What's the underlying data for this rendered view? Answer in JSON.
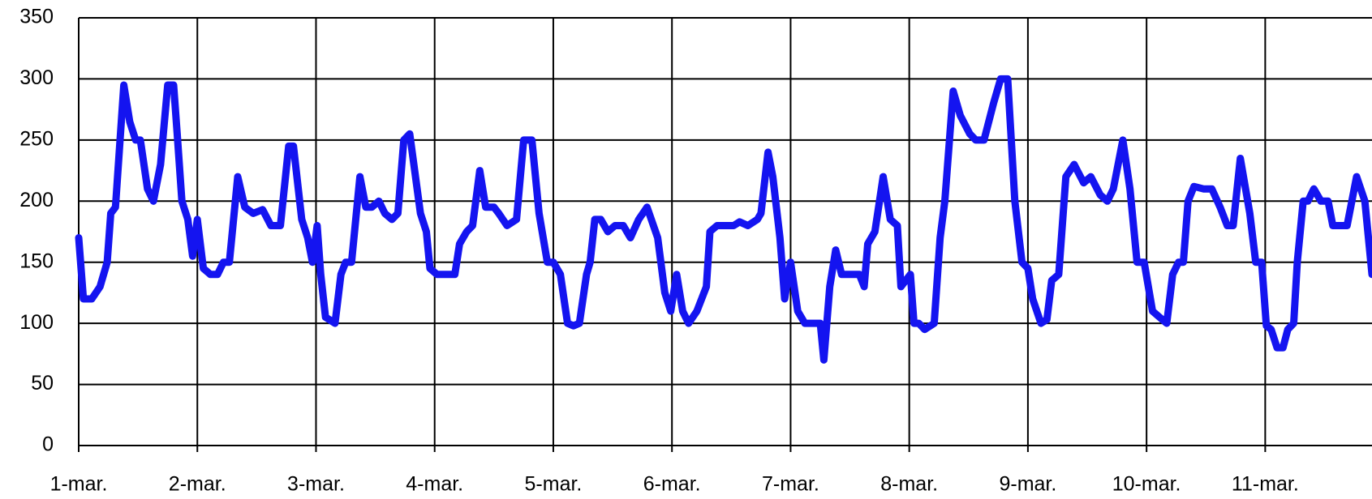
{
  "chart_data": {
    "type": "line",
    "x": [
      0,
      0.04,
      0.11,
      0.18,
      0.24,
      0.27,
      0.31,
      0.38,
      0.43,
      0.48,
      0.52,
      0.58,
      0.63,
      0.69,
      0.75,
      0.8,
      0.83,
      0.87,
      0.92,
      0.96,
      1.0,
      1.05,
      1.11,
      1.17,
      1.22,
      1.27,
      1.34,
      1.4,
      1.47,
      1.55,
      1.62,
      1.7,
      1.77,
      1.81,
      1.88,
      1.93,
      1.97,
      2.01,
      2.04,
      2.08,
      2.16,
      2.21,
      2.25,
      2.3,
      2.37,
      2.42,
      2.47,
      2.53,
      2.58,
      2.64,
      2.69,
      2.74,
      2.79,
      2.88,
      2.93,
      2.96,
      3.02,
      3.1,
      3.17,
      3.21,
      3.27,
      3.32,
      3.38,
      3.43,
      3.5,
      3.54,
      3.61,
      3.69,
      3.75,
      3.82,
      3.88,
      3.95,
      4.0,
      4.06,
      4.12,
      4.17,
      4.22,
      4.28,
      4.31,
      4.35,
      4.4,
      4.46,
      4.52,
      4.59,
      4.65,
      4.72,
      4.79,
      4.88,
      4.94,
      4.99,
      5.04,
      5.09,
      5.14,
      5.21,
      5.29,
      5.32,
      5.38,
      5.46,
      5.52,
      5.57,
      5.64,
      5.72,
      5.75,
      5.81,
      5.85,
      5.91,
      5.95,
      6.0,
      6.06,
      6.12,
      6.19,
      6.25,
      6.28,
      6.33,
      6.38,
      6.43,
      6.5,
      6.58,
      6.62,
      6.65,
      6.71,
      6.78,
      6.84,
      6.9,
      6.93,
      7.01,
      7.04,
      7.08,
      7.13,
      7.21,
      7.26,
      7.3,
      7.37,
      7.43,
      7.51,
      7.56,
      7.63,
      7.71,
      7.77,
      7.83,
      7.89,
      7.95,
      8.0,
      8.04,
      8.11,
      8.16,
      8.2,
      8.26,
      8.32,
      8.39,
      8.47,
      8.53,
      8.61,
      8.67,
      8.72,
      8.8,
      8.86,
      8.92,
      8.98,
      9.05,
      9.11,
      9.17,
      9.22,
      9.27,
      9.31,
      9.35,
      9.4,
      9.48,
      9.55,
      9.62,
      9.68,
      9.73,
      9.79,
      9.87,
      9.92,
      9.97,
      10.01,
      10.05,
      10.1,
      10.15,
      10.19,
      10.24,
      10.27,
      10.32,
      10.36,
      10.41,
      10.47,
      10.53,
      10.57,
      10.63,
      10.69,
      10.77,
      10.84,
      10.9
    ],
    "series": [
      {
        "color": "#1414f0",
        "values": [
          170,
          120,
          120,
          130,
          150,
          190,
          195,
          295,
          265,
          250,
          250,
          210,
          200,
          230,
          295,
          295,
          255,
          200,
          185,
          155,
          185,
          145,
          140,
          140,
          150,
          150,
          220,
          195,
          190,
          193,
          180,
          180,
          245,
          245,
          185,
          170,
          150,
          180,
          140,
          105,
          100,
          140,
          150,
          150,
          220,
          195,
          195,
          200,
          190,
          185,
          190,
          250,
          255,
          190,
          175,
          145,
          140,
          140,
          140,
          165,
          175,
          180,
          225,
          195,
          195,
          190,
          180,
          185,
          250,
          250,
          190,
          150,
          150,
          140,
          100,
          98,
          100,
          140,
          150,
          185,
          185,
          175,
          180,
          180,
          170,
          185,
          195,
          170,
          125,
          110,
          140,
          110,
          100,
          110,
          130,
          175,
          180,
          180,
          180,
          183,
          180,
          185,
          190,
          240,
          220,
          170,
          120,
          150,
          110,
          100,
          100,
          100,
          70,
          130,
          160,
          140,
          140,
          140,
          130,
          165,
          175,
          220,
          185,
          180,
          130,
          140,
          100,
          100,
          95,
          100,
          170,
          200,
          290,
          270,
          255,
          250,
          250,
          280,
          300,
          300,
          200,
          150,
          145,
          120,
          100,
          103,
          135,
          140,
          220,
          230,
          215,
          220,
          205,
          200,
          210,
          250,
          210,
          150,
          150,
          110,
          105,
          100,
          140,
          150,
          150,
          200,
          212,
          210,
          210,
          195,
          180,
          180,
          235,
          190,
          150,
          150,
          98,
          95,
          80,
          80,
          95,
          100,
          150,
          200,
          200,
          210,
          200,
          200,
          180,
          180,
          180,
          220,
          200,
          140
        ]
      }
    ],
    "xlim": [
      0,
      10.9
    ],
    "xticks": [
      {
        "value": 0,
        "label": "1-mar."
      },
      {
        "value": 1,
        "label": "2-mar."
      },
      {
        "value": 2,
        "label": "3-mar."
      },
      {
        "value": 3,
        "label": "4-mar."
      },
      {
        "value": 4,
        "label": "5-mar."
      },
      {
        "value": 5,
        "label": "6-mar."
      },
      {
        "value": 6,
        "label": "7-mar."
      },
      {
        "value": 7,
        "label": "8-mar."
      },
      {
        "value": 8,
        "label": "9-mar."
      },
      {
        "value": 9,
        "label": "10-mar."
      },
      {
        "value": 10,
        "label": "11-mar."
      }
    ],
    "ylim": [
      0,
      350
    ],
    "yticks": [
      0,
      50,
      100,
      150,
      200,
      250,
      300,
      350
    ],
    "grid": true
  }
}
